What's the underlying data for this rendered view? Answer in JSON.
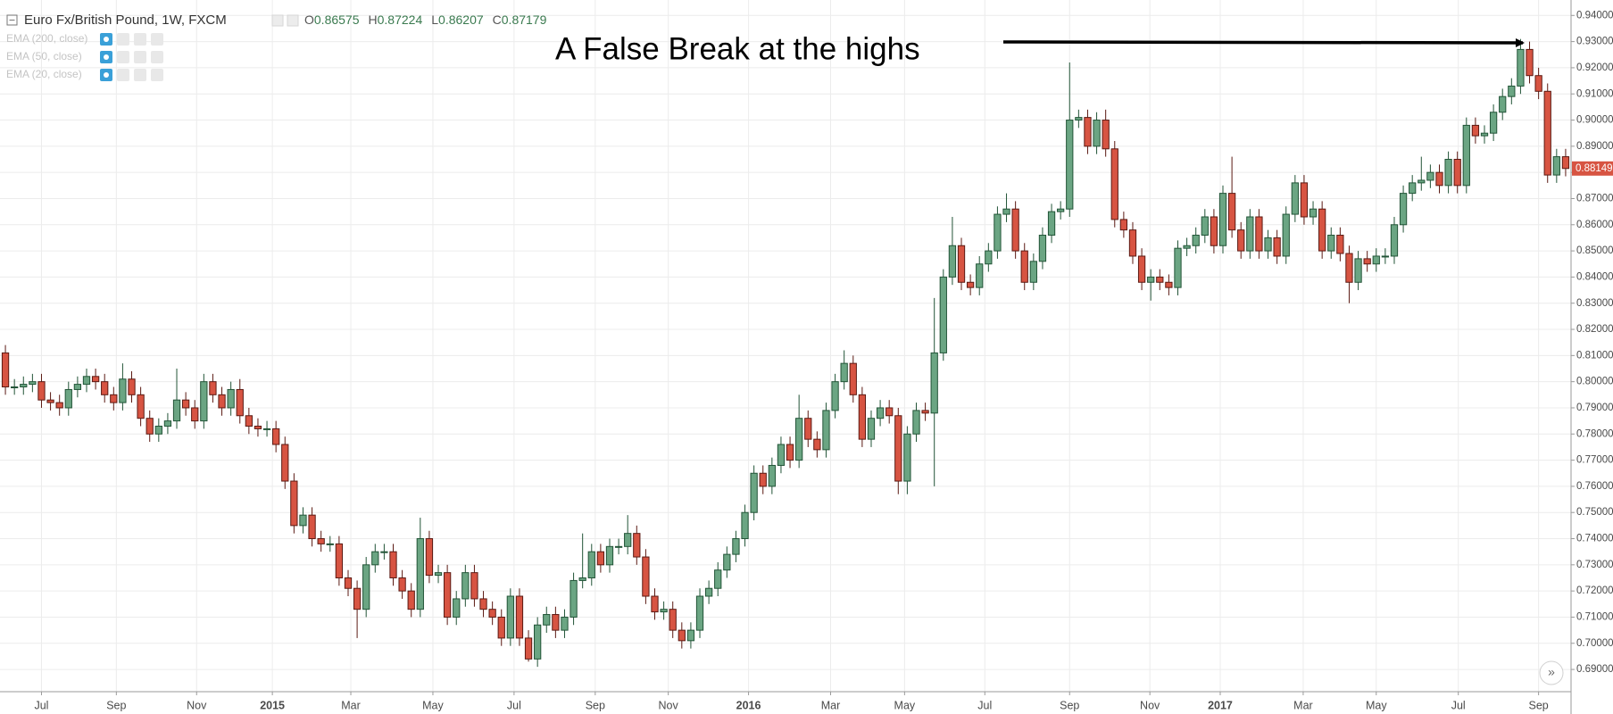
{
  "chart_data": {
    "type": "candlestick",
    "title": "Euro Fx/British Pound, 1W, FXCM",
    "ohlc_header": [
      {
        "label": "O",
        "value": 0.86575
      },
      {
        "label": "H",
        "value": 0.87224
      },
      {
        "label": "L",
        "value": 0.86207
      },
      {
        "label": "C",
        "value": 0.87179
      }
    ],
    "indicators": [
      "EMA (200, close)",
      "EMA (50, close)",
      "EMA (20, close)"
    ],
    "annotation": "A False Break at the highs",
    "last_price": 0.88149,
    "up_color": "#6ba583",
    "up_border": "#225437",
    "down_color": "#d75442",
    "down_border": "#5b1a13",
    "grid": true,
    "xlim": [
      -0.6,
      173.6
    ],
    "ylim": [
      0.6815,
      0.9459
    ],
    "xticks": [
      {
        "value": 4,
        "label": "Jul"
      },
      {
        "value": 12.3,
        "label": "Sep"
      },
      {
        "value": 21.2,
        "label": "Nov"
      },
      {
        "value": 29.6,
        "label": "2015"
      },
      {
        "value": 38.3,
        "label": "Mar"
      },
      {
        "value": 47.4,
        "label": "May"
      },
      {
        "value": 56.4,
        "label": "Jul"
      },
      {
        "value": 65.4,
        "label": "Sep"
      },
      {
        "value": 73.5,
        "label": "Nov"
      },
      {
        "value": 82.4,
        "label": "2016"
      },
      {
        "value": 91.5,
        "label": "Mar"
      },
      {
        "value": 99.7,
        "label": "May"
      },
      {
        "value": 108.6,
        "label": "Jul"
      },
      {
        "value": 118,
        "label": "Sep"
      },
      {
        "value": 126.9,
        "label": "Nov"
      },
      {
        "value": 134.7,
        "label": "2017"
      },
      {
        "value": 143.9,
        "label": "Mar"
      },
      {
        "value": 152,
        "label": "May"
      },
      {
        "value": 161.1,
        "label": "Jul"
      },
      {
        "value": 170,
        "label": "Sep"
      }
    ],
    "yticks": [
      {
        "value": 0.69,
        "label": "0.69000"
      },
      {
        "value": 0.7,
        "label": "0.70000"
      },
      {
        "value": 0.71,
        "label": "0.71000"
      },
      {
        "value": 0.72,
        "label": "0.72000"
      },
      {
        "value": 0.73,
        "label": "0.73000"
      },
      {
        "value": 0.74,
        "label": "0.74000"
      },
      {
        "value": 0.75,
        "label": "0.75000"
      },
      {
        "value": 0.76,
        "label": "0.76000"
      },
      {
        "value": 0.77,
        "label": "0.77000"
      },
      {
        "value": 0.78,
        "label": "0.78000"
      },
      {
        "value": 0.79,
        "label": "0.79000"
      },
      {
        "value": 0.8,
        "label": "0.80000"
      },
      {
        "value": 0.81,
        "label": "0.81000"
      },
      {
        "value": 0.82,
        "label": "0.82000"
      },
      {
        "value": 0.83,
        "label": "0.83000"
      },
      {
        "value": 0.84,
        "label": "0.84000"
      },
      {
        "value": 0.85,
        "label": "0.85000"
      },
      {
        "value": 0.86,
        "label": "0.86000"
      },
      {
        "value": 0.87,
        "label": "0.87000"
      },
      {
        "value": 0.88,
        "label": "0.88000"
      },
      {
        "value": 0.89,
        "label": "0.89000"
      },
      {
        "value": 0.9,
        "label": "0.90000"
      },
      {
        "value": 0.91,
        "label": "0.91000"
      },
      {
        "value": 0.92,
        "label": "0.92000"
      },
      {
        "value": 0.93,
        "label": "0.93000"
      },
      {
        "value": 0.94,
        "label": "0.94000"
      }
    ],
    "open": [
      0.811,
      0.798,
      0.798,
      0.799,
      0.8,
      0.793,
      0.792,
      0.79,
      0.797,
      0.799,
      0.802,
      0.8,
      0.795,
      0.792,
      0.801,
      0.795,
      0.786,
      0.78,
      0.783,
      0.785,
      0.793,
      0.79,
      0.785,
      0.8,
      0.795,
      0.79,
      0.797,
      0.787,
      0.783,
      0.782,
      0.782,
      0.776,
      0.762,
      0.745,
      0.749,
      0.74,
      0.738,
      0.738,
      0.725,
      0.721,
      0.713,
      0.73,
      0.735,
      0.735,
      0.725,
      0.72,
      0.713,
      0.74,
      0.726,
      0.727,
      0.71,
      0.717,
      0.727,
      0.717,
      0.713,
      0.71,
      0.702,
      0.718,
      0.702,
      0.694,
      0.707,
      0.711,
      0.705,
      0.71,
      0.724,
      0.725,
      0.735,
      0.73,
      0.737,
      0.737,
      0.742,
      0.733,
      0.718,
      0.712,
      0.713,
      0.705,
      0.701,
      0.705,
      0.718,
      0.721,
      0.728,
      0.734,
      0.74,
      0.75,
      0.765,
      0.76,
      0.768,
      0.776,
      0.77,
      0.786,
      0.778,
      0.774,
      0.789,
      0.8,
      0.807,
      0.795,
      0.778,
      0.786,
      0.79,
      0.787,
      0.762,
      0.78,
      0.789,
      0.788,
      0.811,
      0.84,
      0.852,
      0.838,
      0.836,
      0.845,
      0.85,
      0.864,
      0.866,
      0.85,
      0.838,
      0.846,
      0.856,
      0.865,
      0.866,
      0.9,
      0.901,
      0.89,
      0.9,
      0.889,
      0.862,
      0.858,
      0.848,
      0.838,
      0.84,
      0.838,
      0.836,
      0.851,
      0.852,
      0.856,
      0.863,
      0.852,
      0.872,
      0.858,
      0.85,
      0.863,
      0.85,
      0.855,
      0.848,
      0.864,
      0.876,
      0.863,
      0.866,
      0.85,
      0.856,
      0.849,
      0.838,
      0.847,
      0.845,
      0.848,
      0.848,
      0.86,
      0.872,
      0.876,
      0.877,
      0.88,
      0.875,
      0.885,
      0.875,
      0.898,
      0.894,
      0.895,
      0.903,
      0.909,
      0.913,
      0.927,
      0.917,
      0.911,
      0.879,
      0.886
    ],
    "high": [
      0.814,
      0.801,
      0.802,
      0.803,
      0.803,
      0.796,
      0.795,
      0.8,
      0.802,
      0.805,
      0.805,
      0.803,
      0.798,
      0.807,
      0.804,
      0.798,
      0.789,
      0.786,
      0.788,
      0.805,
      0.796,
      0.793,
      0.803,
      0.803,
      0.798,
      0.8,
      0.801,
      0.79,
      0.786,
      0.785,
      0.785,
      0.779,
      0.765,
      0.752,
      0.752,
      0.743,
      0.741,
      0.741,
      0.728,
      0.724,
      0.733,
      0.738,
      0.738,
      0.738,
      0.728,
      0.723,
      0.748,
      0.743,
      0.73,
      0.73,
      0.72,
      0.73,
      0.73,
      0.72,
      0.716,
      0.713,
      0.721,
      0.721,
      0.705,
      0.71,
      0.714,
      0.714,
      0.713,
      0.727,
      0.742,
      0.738,
      0.738,
      0.74,
      0.74,
      0.749,
      0.745,
      0.736,
      0.721,
      0.716,
      0.716,
      0.708,
      0.708,
      0.721,
      0.724,
      0.731,
      0.737,
      0.743,
      0.753,
      0.768,
      0.768,
      0.771,
      0.779,
      0.779,
      0.795,
      0.789,
      0.781,
      0.792,
      0.803,
      0.812,
      0.81,
      0.798,
      0.789,
      0.793,
      0.793,
      0.79,
      0.783,
      0.792,
      0.792,
      0.832,
      0.843,
      0.863,
      0.855,
      0.841,
      0.848,
      0.853,
      0.867,
      0.872,
      0.869,
      0.853,
      0.849,
      0.859,
      0.868,
      0.869,
      0.922,
      0.904,
      0.904,
      0.903,
      0.904,
      0.892,
      0.865,
      0.861,
      0.851,
      0.843,
      0.843,
      0.841,
      0.854,
      0.855,
      0.859,
      0.866,
      0.866,
      0.875,
      0.886,
      0.861,
      0.866,
      0.866,
      0.858,
      0.858,
      0.867,
      0.879,
      0.879,
      0.869,
      0.869,
      0.859,
      0.859,
      0.852,
      0.85,
      0.85,
      0.851,
      0.851,
      0.863,
      0.875,
      0.879,
      0.886,
      0.883,
      0.883,
      0.888,
      0.888,
      0.901,
      0.901,
      0.898,
      0.906,
      0.912,
      0.916,
      0.931,
      0.93,
      0.92,
      0.914,
      0.889,
      0.889
    ],
    "low": [
      0.795,
      0.795,
      0.795,
      0.796,
      0.79,
      0.789,
      0.787,
      0.787,
      0.794,
      0.796,
      0.797,
      0.792,
      0.789,
      0.789,
      0.792,
      0.783,
      0.777,
      0.777,
      0.78,
      0.782,
      0.787,
      0.782,
      0.782,
      0.792,
      0.787,
      0.787,
      0.784,
      0.78,
      0.779,
      0.779,
      0.773,
      0.759,
      0.742,
      0.742,
      0.737,
      0.735,
      0.735,
      0.722,
      0.718,
      0.702,
      0.71,
      0.727,
      0.732,
      0.722,
      0.717,
      0.71,
      0.71,
      0.723,
      0.723,
      0.707,
      0.707,
      0.714,
      0.714,
      0.71,
      0.707,
      0.699,
      0.699,
      0.699,
      0.693,
      0.691,
      0.704,
      0.702,
      0.702,
      0.707,
      0.721,
      0.722,
      0.727,
      0.727,
      0.734,
      0.734,
      0.73,
      0.715,
      0.709,
      0.709,
      0.702,
      0.698,
      0.698,
      0.702,
      0.715,
      0.718,
      0.725,
      0.731,
      0.737,
      0.747,
      0.757,
      0.757,
      0.765,
      0.767,
      0.767,
      0.775,
      0.771,
      0.771,
      0.786,
      0.797,
      0.792,
      0.775,
      0.775,
      0.783,
      0.784,
      0.757,
      0.757,
      0.777,
      0.785,
      0.76,
      0.808,
      0.837,
      0.835,
      0.833,
      0.833,
      0.842,
      0.847,
      0.861,
      0.847,
      0.835,
      0.835,
      0.843,
      0.853,
      0.862,
      0.863,
      0.897,
      0.887,
      0.887,
      0.886,
      0.859,
      0.855,
      0.845,
      0.835,
      0.831,
      0.835,
      0.833,
      0.833,
      0.848,
      0.849,
      0.853,
      0.849,
      0.849,
      0.855,
      0.847,
      0.847,
      0.847,
      0.847,
      0.845,
      0.845,
      0.861,
      0.86,
      0.86,
      0.847,
      0.847,
      0.846,
      0.83,
      0.835,
      0.842,
      0.842,
      0.845,
      0.845,
      0.857,
      0.869,
      0.873,
      0.874,
      0.872,
      0.872,
      0.872,
      0.872,
      0.891,
      0.891,
      0.892,
      0.9,
      0.906,
      0.91,
      0.914,
      0.908,
      0.876,
      0.876,
      0.8785
    ],
    "close": [
      0.798,
      0.798,
      0.799,
      0.8,
      0.793,
      0.792,
      0.79,
      0.797,
      0.799,
      0.802,
      0.8,
      0.795,
      0.792,
      0.801,
      0.795,
      0.786,
      0.78,
      0.783,
      0.785,
      0.793,
      0.79,
      0.785,
      0.8,
      0.795,
      0.79,
      0.797,
      0.787,
      0.783,
      0.782,
      0.782,
      0.776,
      0.762,
      0.745,
      0.749,
      0.74,
      0.738,
      0.738,
      0.725,
      0.721,
      0.713,
      0.73,
      0.735,
      0.735,
      0.725,
      0.72,
      0.713,
      0.74,
      0.726,
      0.727,
      0.71,
      0.717,
      0.727,
      0.717,
      0.713,
      0.71,
      0.702,
      0.718,
      0.702,
      0.694,
      0.707,
      0.711,
      0.705,
      0.71,
      0.724,
      0.725,
      0.735,
      0.73,
      0.737,
      0.737,
      0.742,
      0.733,
      0.718,
      0.712,
      0.713,
      0.705,
      0.701,
      0.705,
      0.718,
      0.721,
      0.728,
      0.734,
      0.74,
      0.75,
      0.765,
      0.76,
      0.768,
      0.776,
      0.77,
      0.786,
      0.778,
      0.774,
      0.789,
      0.8,
      0.807,
      0.795,
      0.778,
      0.786,
      0.79,
      0.787,
      0.762,
      0.78,
      0.789,
      0.788,
      0.811,
      0.84,
      0.852,
      0.838,
      0.836,
      0.845,
      0.85,
      0.864,
      0.866,
      0.85,
      0.838,
      0.846,
      0.856,
      0.865,
      0.866,
      0.9,
      0.901,
      0.89,
      0.9,
      0.889,
      0.862,
      0.858,
      0.848,
      0.838,
      0.84,
      0.838,
      0.836,
      0.851,
      0.852,
      0.856,
      0.863,
      0.852,
      0.872,
      0.858,
      0.85,
      0.863,
      0.85,
      0.855,
      0.848,
      0.864,
      0.876,
      0.863,
      0.866,
      0.85,
      0.856,
      0.849,
      0.838,
      0.847,
      0.845,
      0.848,
      0.848,
      0.86,
      0.872,
      0.876,
      0.877,
      0.88,
      0.875,
      0.885,
      0.875,
      0.898,
      0.894,
      0.895,
      0.903,
      0.909,
      0.913,
      0.927,
      0.917,
      0.911,
      0.879,
      0.886,
      0.8815
    ]
  }
}
